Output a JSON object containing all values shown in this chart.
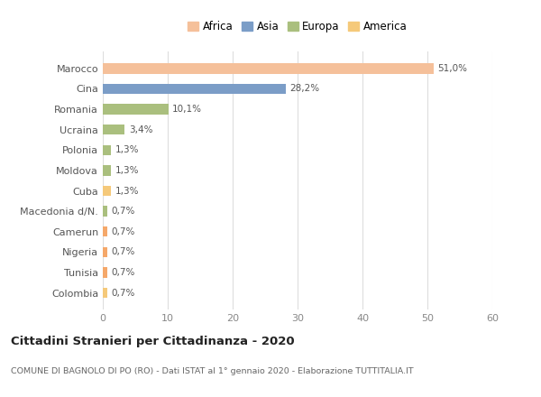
{
  "categories": [
    "Colombia",
    "Tunisia",
    "Nigeria",
    "Camerun",
    "Macedonia d/N.",
    "Cuba",
    "Moldova",
    "Polonia",
    "Ucraina",
    "Romania",
    "Cina",
    "Marocco"
  ],
  "values": [
    0.7,
    0.7,
    0.7,
    0.7,
    0.7,
    1.3,
    1.3,
    1.3,
    3.4,
    10.1,
    28.2,
    51.0
  ],
  "labels": [
    "0,7%",
    "0,7%",
    "0,7%",
    "0,7%",
    "0,7%",
    "1,3%",
    "1,3%",
    "1,3%",
    "3,4%",
    "10,1%",
    "28,2%",
    "51,0%"
  ],
  "colors": [
    "#F5C97A",
    "#F5A86A",
    "#F5A86A",
    "#F5A86A",
    "#AABF7E",
    "#F5C97A",
    "#AABF7E",
    "#AABF7E",
    "#AABF7E",
    "#AABF7E",
    "#7B9DC7",
    "#F5C09A"
  ],
  "legend": [
    {
      "label": "Africa",
      "color": "#F5C09A"
    },
    {
      "label": "Asia",
      "color": "#7B9DC7"
    },
    {
      "label": "Europa",
      "color": "#AABF7E"
    },
    {
      "label": "America",
      "color": "#F5C97A"
    }
  ],
  "xlim": [
    0,
    60
  ],
  "xticks": [
    0,
    10,
    20,
    30,
    40,
    50,
    60
  ],
  "title": "Cittadini Stranieri per Cittadinanza - 2020",
  "subtitle": "COMUNE DI BAGNOLO DI PO (RO) - Dati ISTAT al 1° gennaio 2020 - Elaborazione TUTTITALIA.IT",
  "background_color": "#ffffff",
  "grid_color": "#dddddd",
  "bar_height": 0.5
}
